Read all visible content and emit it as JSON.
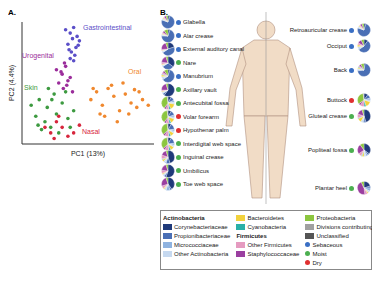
{
  "chart_data": [
    {
      "type": "scatter",
      "title": "A.",
      "x_label": "PC1 (13%)",
      "y_label": "PC2 (4.4%)",
      "tick_labels": false,
      "xlim": [
        -0.5,
        0.65
      ],
      "ylim": [
        -0.45,
        0.65
      ],
      "series": [
        {
          "name": "Gastrointestinal",
          "color": "#5b4fc8",
          "x": [
            -0.12,
            -0.08,
            -0.05,
            -0.02,
            0.0,
            -0.1,
            -0.06,
            -0.03,
            -0.07,
            -0.04,
            -0.09,
            -0.01,
            -0.05,
            -0.08
          ],
          "values": [
            0.58,
            0.55,
            0.6,
            0.52,
            0.48,
            0.45,
            0.5,
            0.42,
            0.38,
            0.35,
            0.4,
            0.44,
            0.3,
            0.32
          ]
        },
        {
          "name": "Urogenital",
          "color": "#9b2d9b",
          "x": [
            -0.2,
            -0.15,
            -0.12,
            -0.1,
            -0.18,
            -0.14,
            -0.08,
            -0.16,
            -0.11,
            -0.06,
            -0.13
          ],
          "values": [
            0.22,
            0.18,
            0.25,
            0.12,
            0.1,
            0.05,
            0.15,
            0.2,
            0.08,
            0.02,
            0.28
          ]
        },
        {
          "name": "Oral",
          "color": "#f0882e",
          "x": [
            0.1,
            0.15,
            0.2,
            0.25,
            0.3,
            0.35,
            0.4,
            0.45,
            0.5,
            0.55,
            0.18,
            0.28,
            0.38,
            0.48,
            0.22,
            0.33,
            0.43,
            0.52,
            0.12,
            0.6
          ],
          "values": [
            -0.05,
            0.02,
            -0.1,
            0.05,
            -0.02,
            -0.15,
            0.0,
            -0.08,
            -0.12,
            -0.05,
            -0.18,
            0.08,
            0.1,
            0.04,
            -0.2,
            -0.25,
            -0.18,
            0.02,
            0.05,
            -0.1
          ]
        },
        {
          "name": "Skin",
          "color": "#3d9a40",
          "x": [
            -0.42,
            -0.38,
            -0.35,
            -0.3,
            -0.28,
            -0.25,
            -0.22,
            -0.2,
            -0.15,
            -0.1,
            -0.05,
            -0.33,
            -0.27,
            -0.18,
            -0.12,
            -0.36,
            -0.24,
            -0.08
          ],
          "values": [
            -0.1,
            -0.2,
            -0.05,
            -0.25,
            -0.12,
            -0.3,
            0.0,
            -0.18,
            -0.08,
            -0.22,
            -0.15,
            -0.32,
            0.05,
            -0.35,
            0.02,
            -0.28,
            -0.05,
            -0.3
          ]
        },
        {
          "name": "Nasal",
          "color": "#d7263d",
          "x": [
            -0.3,
            -0.25,
            -0.2,
            -0.15,
            -0.1,
            -0.18,
            -0.22,
            -0.05,
            0.0
          ],
          "values": [
            -0.3,
            -0.35,
            -0.25,
            -0.3,
            -0.38,
            -0.2,
            -0.4,
            -0.35,
            -0.28
          ]
        }
      ]
    },
    {
      "type": "pie",
      "title": "B.",
      "taxa": [
        {
          "name": "Corynebacteriaceae",
          "color": "#1f3a7a",
          "group": "Actinobacteria"
        },
        {
          "name": "Propionibacteriaceae",
          "color": "#4a6fb5",
          "group": "Actinobacteria"
        },
        {
          "name": "Micrococciaceae",
          "color": "#8fb3e0",
          "group": "Actinobacteria"
        },
        {
          "name": "Other Actinobacteria",
          "color": "#c6d9f0",
          "group": "Actinobacteria"
        },
        {
          "name": "Bacteroidetes",
          "color": "#f2d23c"
        },
        {
          "name": "Cyanobacteria",
          "color": "#2ab0a8"
        },
        {
          "name": "Other Firmicutes",
          "color": "#e59bc0",
          "group": "Firmicutes"
        },
        {
          "name": "Staphylococcaceae",
          "color": "#9b3fa0",
          "group": "Firmicutes"
        },
        {
          "name": "Proteobacteria",
          "color": "#8cc63f"
        },
        {
          "name": "Divisions contributing <1%",
          "color": "#a0a0a0"
        },
        {
          "name": "Unclassified",
          "color": "#555555"
        }
      ],
      "site_types": [
        {
          "name": "Sebaceous",
          "color": "#3a6fc4"
        },
        {
          "name": "Moist",
          "color": "#4caf50"
        },
        {
          "name": "Dry",
          "color": "#e03030"
        }
      ],
      "front_sites": [
        {
          "name": "Glabella",
          "site_type": "Sebaceous",
          "values": [
            5,
            75,
            2,
            3,
            2,
            0,
            3,
            5,
            5,
            0,
            0
          ]
        },
        {
          "name": "Alar crease",
          "site_type": "Sebaceous",
          "values": [
            5,
            70,
            2,
            3,
            2,
            0,
            3,
            5,
            10,
            0,
            0
          ]
        },
        {
          "name": "External auditory canal",
          "site_type": "Sebaceous",
          "values": [
            20,
            45,
            2,
            3,
            1,
            0,
            3,
            20,
            6,
            0,
            0
          ]
        },
        {
          "name": "Nare",
          "site_type": "Moist",
          "values": [
            35,
            30,
            2,
            3,
            2,
            0,
            5,
            18,
            5,
            0,
            0
          ]
        },
        {
          "name": "Manubrium",
          "site_type": "Sebaceous",
          "values": [
            5,
            60,
            3,
            5,
            5,
            2,
            5,
            5,
            10,
            0,
            0
          ]
        },
        {
          "name": "Axillary vault",
          "site_type": "Moist",
          "values": [
            60,
            5,
            2,
            3,
            2,
            0,
            3,
            20,
            5,
            0,
            0
          ]
        },
        {
          "name": "Antecubital fossa",
          "site_type": "Moist",
          "values": [
            8,
            10,
            5,
            5,
            15,
            5,
            7,
            5,
            38,
            2,
            0
          ]
        },
        {
          "name": "Volar forearm",
          "site_type": "Dry",
          "values": [
            8,
            12,
            5,
            5,
            12,
            5,
            8,
            5,
            38,
            2,
            0
          ]
        },
        {
          "name": "Hypothenar palm",
          "site_type": "Dry",
          "values": [
            8,
            15,
            5,
            5,
            10,
            5,
            10,
            5,
            35,
            2,
            0
          ]
        },
        {
          "name": "Interdigital web space",
          "site_type": "Moist",
          "values": [
            8,
            15,
            5,
            5,
            10,
            5,
            10,
            5,
            35,
            2,
            0
          ]
        },
        {
          "name": "Inguinal crease",
          "site_type": "Moist",
          "values": [
            45,
            10,
            3,
            5,
            5,
            2,
            10,
            15,
            5,
            0,
            0
          ]
        },
        {
          "name": "Umbilicus",
          "site_type": "Moist",
          "values": [
            55,
            5,
            3,
            3,
            3,
            0,
            8,
            18,
            5,
            0,
            0
          ]
        },
        {
          "name": "Toe web space",
          "site_type": "Moist",
          "values": [
            40,
            5,
            10,
            5,
            3,
            0,
            7,
            25,
            5,
            0,
            0
          ]
        }
      ],
      "back_sites": [
        {
          "name": "Retroauricular crease",
          "site_type": "Sebaceous",
          "values": [
            5,
            75,
            2,
            3,
            2,
            0,
            3,
            5,
            5,
            0,
            0
          ]
        },
        {
          "name": "Occiput",
          "site_type": "Sebaceous",
          "values": [
            10,
            55,
            3,
            5,
            5,
            0,
            5,
            10,
            7,
            0,
            0
          ]
        },
        {
          "name": "Back",
          "site_type": "Sebaceous",
          "values": [
            3,
            70,
            3,
            3,
            3,
            2,
            3,
            5,
            8,
            0,
            0
          ]
        },
        {
          "name": "Buttock",
          "site_type": "Dry",
          "values": [
            10,
            10,
            5,
            5,
            15,
            5,
            10,
            5,
            33,
            2,
            0
          ]
        },
        {
          "name": "Gluteal crease",
          "site_type": "Moist",
          "values": [
            45,
            5,
            3,
            5,
            10,
            2,
            10,
            15,
            5,
            0,
            0
          ]
        },
        {
          "name": "Popliteal fossa",
          "site_type": "Moist",
          "values": [
            35,
            5,
            5,
            5,
            5,
            2,
            8,
            25,
            10,
            0,
            0
          ]
        },
        {
          "name": "Plantar heel",
          "site_type": "Moist",
          "values": [
            20,
            5,
            8,
            5,
            3,
            0,
            7,
            45,
            7,
            0,
            0
          ]
        }
      ]
    }
  ]
}
